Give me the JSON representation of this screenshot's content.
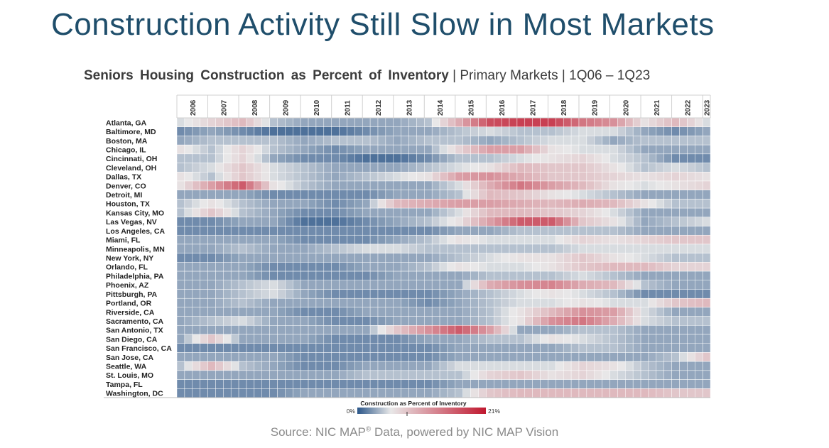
{
  "slide": {
    "title": "Construction Activity Still Slow in Most Markets",
    "source_prefix": "Source: NIC MAP",
    "source_reg": "®",
    "source_suffix": " Data, powered by NIC MAP Vision"
  },
  "chart_data": {
    "type": "heatmap",
    "title": "Seniors Housing Construction as Percent of Inventory",
    "subtitle": "| Primary Markets | 1Q06 – 1Q23",
    "years": [
      "2006",
      "2007",
      "2008",
      "2009",
      "2010",
      "2011",
      "2012",
      "2013",
      "2014",
      "2015",
      "2016",
      "2017",
      "2018",
      "2019",
      "2020",
      "2021",
      "2022",
      "2023"
    ],
    "rows": [
      "Atlanta, GA",
      "Baltimore, MD",
      "Boston, MA",
      "Chicago, IL",
      "Cincinnati, OH",
      "Cleveland, OH",
      "Dallas, TX",
      "Denver, CO",
      "Detroit, MI",
      "Houston, TX",
      "Kansas City, MO",
      "Las Vegas, NV",
      "Los Angeles, CA",
      "Miami, FL",
      "Minneapolis, MN",
      "New York, NY",
      "Orlando, FL",
      "Philadelphia, PA",
      "Phoenix, AZ",
      "Pittsburgh, PA",
      "Portland, OR",
      "Riverside, CA",
      "Sacramento, CA",
      "San Antonio, TX",
      "San Diego, CA",
      "San Francisco, CA",
      "San Jose, CA",
      "Seattle, WA",
      "St. Louis, MO",
      "Tampa, FL",
      "Washington, DC"
    ],
    "values": [
      [
        5,
        7,
        9,
        4,
        3,
        3,
        3,
        3,
        4,
        10,
        17,
        18,
        18,
        14,
        12,
        6,
        9,
        5
      ],
      [
        2,
        3,
        2,
        1,
        1,
        1,
        2,
        3,
        3,
        4,
        5,
        4,
        4,
        5,
        5,
        3,
        2,
        3
      ],
      [
        3,
        4,
        4,
        4,
        3,
        4,
        4,
        3,
        4,
        4,
        3,
        4,
        5,
        5,
        3,
        4,
        4,
        4
      ],
      [
        6,
        4,
        7,
        4,
        3,
        2,
        3,
        3,
        3,
        7,
        11,
        11,
        6,
        5,
        5,
        3,
        3,
        3
      ],
      [
        4,
        4,
        7,
        3,
        2,
        2,
        1,
        1,
        2,
        4,
        4,
        5,
        6,
        7,
        5,
        4,
        2,
        2
      ],
      [
        4,
        5,
        8,
        5,
        4,
        3,
        3,
        3,
        4,
        5,
        6,
        9,
        8,
        8,
        6,
        4,
        5,
        4
      ],
      [
        6,
        4,
        8,
        5,
        4,
        3,
        4,
        5,
        6,
        11,
        12,
        10,
        8,
        8,
        7,
        6,
        7,
        6
      ],
      [
        6,
        11,
        16,
        6,
        4,
        3,
        3,
        3,
        3,
        5,
        10,
        14,
        11,
        9,
        6,
        5,
        6,
        7
      ],
      [
        3,
        3,
        3,
        2,
        2,
        2,
        2,
        3,
        3,
        4,
        9,
        8,
        6,
        5,
        4,
        3,
        3,
        3
      ],
      [
        4,
        6,
        4,
        3,
        3,
        2,
        3,
        9,
        10,
        11,
        11,
        10,
        9,
        10,
        9,
        6,
        4,
        4
      ],
      [
        4,
        8,
        4,
        3,
        2,
        2,
        3,
        3,
        3,
        5,
        9,
        9,
        8,
        7,
        5,
        3,
        3,
        3
      ],
      [
        2,
        2,
        3,
        3,
        1,
        1,
        2,
        3,
        4,
        6,
        11,
        16,
        16,
        8,
        6,
        3,
        4,
        5
      ],
      [
        2,
        2,
        2,
        2,
        2,
        2,
        2,
        2,
        2,
        3,
        3,
        4,
        4,
        4,
        4,
        3,
        3,
        3
      ],
      [
        3,
        3,
        3,
        3,
        2,
        2,
        2,
        3,
        4,
        6,
        5,
        5,
        5,
        7,
        6,
        7,
        8,
        8
      ],
      [
        3,
        3,
        4,
        3,
        3,
        4,
        5,
        5,
        4,
        4,
        4,
        4,
        4,
        5,
        5,
        5,
        5,
        5
      ],
      [
        2,
        2,
        3,
        3,
        3,
        3,
        3,
        3,
        3,
        4,
        5,
        6,
        6,
        8,
        6,
        5,
        4,
        4
      ],
      [
        3,
        3,
        3,
        2,
        2,
        2,
        3,
        3,
        4,
        6,
        5,
        5,
        6,
        8,
        9,
        9,
        7,
        7
      ],
      [
        3,
        3,
        3,
        2,
        2,
        2,
        2,
        3,
        3,
        3,
        4,
        4,
        4,
        5,
        4,
        3,
        3,
        3
      ],
      [
        3,
        3,
        4,
        5,
        3,
        3,
        3,
        3,
        3,
        3,
        10,
        12,
        13,
        10,
        9,
        4,
        3,
        3
      ],
      [
        3,
        3,
        4,
        5,
        3,
        2,
        2,
        2,
        2,
        3,
        4,
        5,
        6,
        5,
        4,
        2,
        2,
        2
      ],
      [
        3,
        3,
        4,
        3,
        3,
        3,
        3,
        3,
        2,
        3,
        4,
        5,
        5,
        6,
        5,
        5,
        8,
        9
      ],
      [
        3,
        3,
        3,
        3,
        2,
        2,
        3,
        3,
        3,
        3,
        4,
        6,
        9,
        12,
        11,
        5,
        3,
        3
      ],
      [
        3,
        4,
        5,
        3,
        3,
        2,
        2,
        3,
        3,
        3,
        4,
        6,
        12,
        14,
        10,
        5,
        4,
        4
      ],
      [
        3,
        3,
        3,
        3,
        3,
        3,
        3,
        8,
        12,
        16,
        11,
        3,
        3,
        4,
        4,
        3,
        3,
        3
      ],
      [
        3,
        8,
        3,
        3,
        3,
        2,
        2,
        2,
        3,
        3,
        4,
        4,
        6,
        5,
        4,
        3,
        3,
        3
      ],
      [
        2,
        2,
        2,
        2,
        2,
        2,
        2,
        2,
        2,
        3,
        3,
        3,
        3,
        4,
        4,
        3,
        3,
        3
      ],
      [
        3,
        3,
        3,
        3,
        2,
        2,
        2,
        2,
        2,
        3,
        3,
        3,
        3,
        3,
        3,
        3,
        4,
        8
      ],
      [
        4,
        9,
        4,
        3,
        2,
        2,
        3,
        3,
        3,
        5,
        5,
        5,
        5,
        7,
        6,
        4,
        3,
        3
      ],
      [
        3,
        3,
        3,
        3,
        3,
        3,
        4,
        4,
        4,
        4,
        7,
        8,
        6,
        7,
        5,
        4,
        3,
        3
      ],
      [
        2,
        2,
        2,
        2,
        2,
        2,
        2,
        2,
        2,
        3,
        3,
        3,
        3,
        3,
        3,
        3,
        3,
        3
      ],
      [
        2,
        2,
        2,
        2,
        3,
        3,
        3,
        3,
        3,
        4,
        8,
        9,
        9,
        9,
        9,
        9,
        8,
        8
      ]
    ],
    "legend": {
      "title": "Construction as Percent of Inventory",
      "min_label": "0%",
      "max_label": "21%",
      "min": 0,
      "max": 21
    },
    "colors": {
      "low": "#2b5689",
      "mid": "#e8e8e8",
      "high": "#c0182f"
    }
  }
}
